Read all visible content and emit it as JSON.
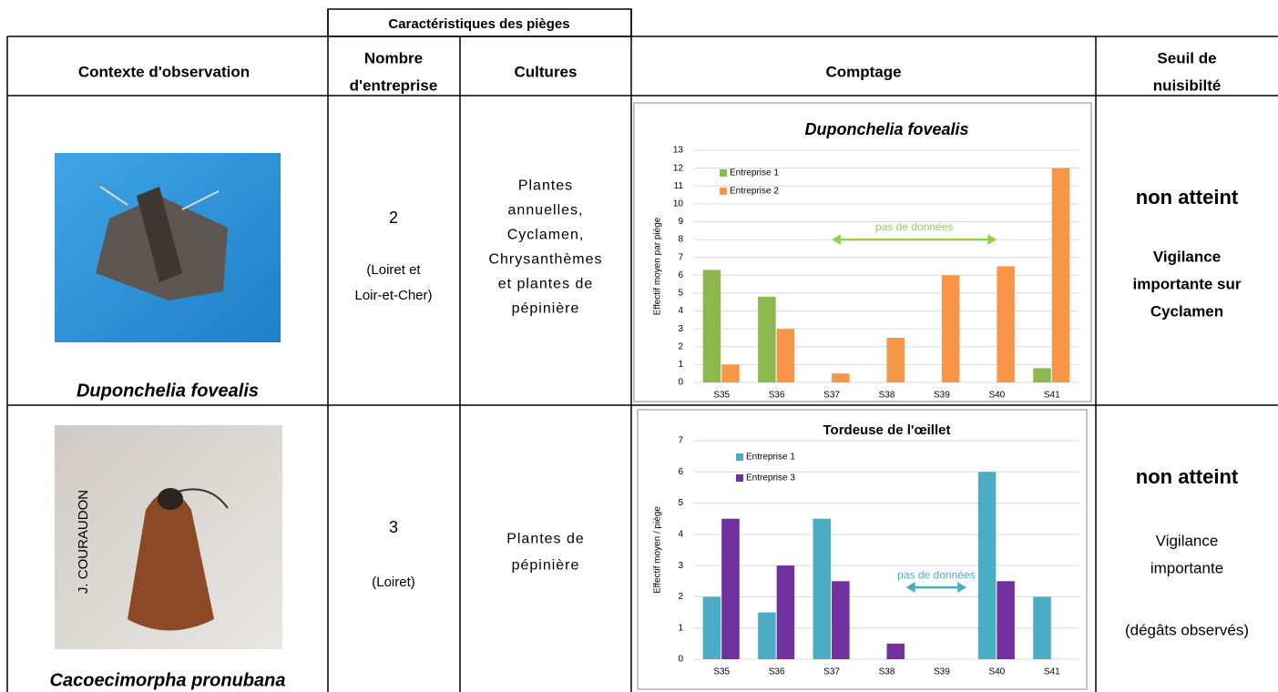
{
  "table": {
    "group_header": "Caractéristiques des pièges",
    "columns": [
      [
        "Contexte d'observation"
      ],
      [
        "Nombre",
        "d'entreprise"
      ],
      [
        "Cultures"
      ],
      [
        "Comptage"
      ],
      [
        "Seuil de",
        "nuisibilté"
      ]
    ],
    "rows": [
      {
        "species": "Duponchelia fovealis",
        "count": 2,
        "location": [
          "(Loiret et",
          "Loir-et-Cher)"
        ],
        "cultures": [
          "Plantes",
          "annuelles,",
          "Cyclamen,",
          "Chrysanthèmes",
          "et plantes de",
          "pépinière"
        ],
        "threshold": "non atteint",
        "note": [
          "Vigilance",
          "importante sur",
          "Cyclamen"
        ],
        "chart": {
          "type": "bar",
          "title": "Duponchelia fovealis",
          "y_label": "Effectif moyen par piège",
          "categories": [
            "S35",
            "S36",
            "S37",
            "S38",
            "S39",
            "S40",
            "S41"
          ],
          "series": [
            {
              "name": "Entreprise 1",
              "color": "#8cb84d",
              "values": [
                6.3,
                4.8,
                null,
                null,
                null,
                null,
                0.8
              ]
            },
            {
              "name": "Entreprise 2",
              "color": "#f79646",
              "values": [
                1,
                3,
                0.5,
                2.5,
                6,
                6.5,
                12
              ]
            }
          ],
          "ylim": [
            0,
            13
          ],
          "yticks": [
            0,
            1,
            2,
            3,
            4,
            5,
            6,
            7,
            8,
            9,
            10,
            11,
            12,
            13
          ],
          "grid": true,
          "annotation": "pas de données",
          "annotation_color": "#92d050"
        }
      },
      {
        "photo_credit": "J. COURAUDON",
        "species": "Cacoecimorpha pronubana",
        "count": 3,
        "location": [
          "(Loiret)"
        ],
        "cultures": [
          "Plantes de",
          "pépinière"
        ],
        "threshold": "non atteint",
        "note": [
          "Vigilance",
          "importante"
        ],
        "note2": "(dégâts observés)",
        "chart": {
          "type": "bar",
          "title": "Tordeuse de l'œillet",
          "y_label": "Effectif moyen / piège",
          "categories": [
            "S35",
            "S36",
            "S37",
            "S38",
            "S39",
            "S40",
            "S41"
          ],
          "series": [
            {
              "name": "Entreprise 1",
              "color": "#4bacc6",
              "values": [
                2,
                1.5,
                4.5,
                null,
                null,
                6,
                2
              ]
            },
            {
              "name": "Entreprise 3",
              "color": "#7030a0",
              "values": [
                4.5,
                3,
                2.5,
                0.5,
                null,
                2.5,
                null
              ]
            }
          ],
          "ylim": [
            0,
            7
          ],
          "yticks": [
            0,
            1,
            2,
            3,
            4,
            5,
            6,
            7
          ],
          "grid": true,
          "annotation": "pas de données",
          "annotation_color": "#4bacc6"
        }
      }
    ]
  }
}
